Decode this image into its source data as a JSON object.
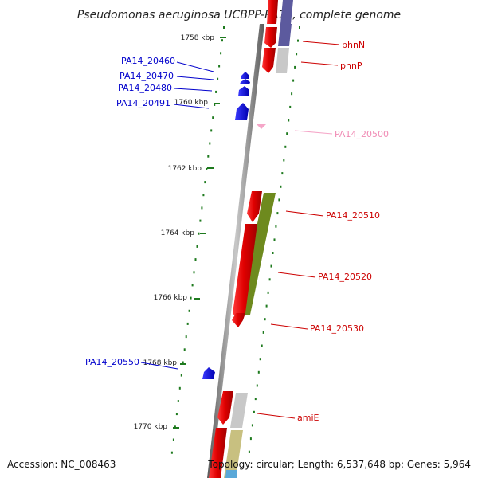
{
  "title": "Pseudomonas aeruginosa UCBPP-PA14, complete genome",
  "footer": {
    "accession": "Accession: NC_008463",
    "summary": "Topology: circular; Length: 6,537,648 bp; Genes: 5,964"
  },
  "scale_labels": [
    "1758 kbp",
    "1760 kbp",
    "1762 kbp",
    "1764 kbp",
    "1766 kbp",
    "1768 kbp",
    "1770 kbp"
  ],
  "gene_labels": {
    "left": [
      "PA14_20460",
      "PA14_20470",
      "PA14_20480",
      "PA14_20491",
      "PA14_20550"
    ],
    "right": [
      "phnN",
      "phnP",
      "PA14_20500",
      "PA14_20510",
      "PA14_20520",
      "PA14_20530",
      "amiE"
    ]
  },
  "colors": {
    "forward_gene": "#e00000",
    "reverse_gene": "#0000dd",
    "rna_gene": "#f5a6c8",
    "cog_purple": "#5c5a9e",
    "cog_gray": "#c8c8c8",
    "cog_olive": "#6e8a1e",
    "cog_khaki": "#c8c080",
    "cog_blue": "#5aa8d8",
    "tick": "#1e7a1e",
    "axis": "#808080"
  }
}
